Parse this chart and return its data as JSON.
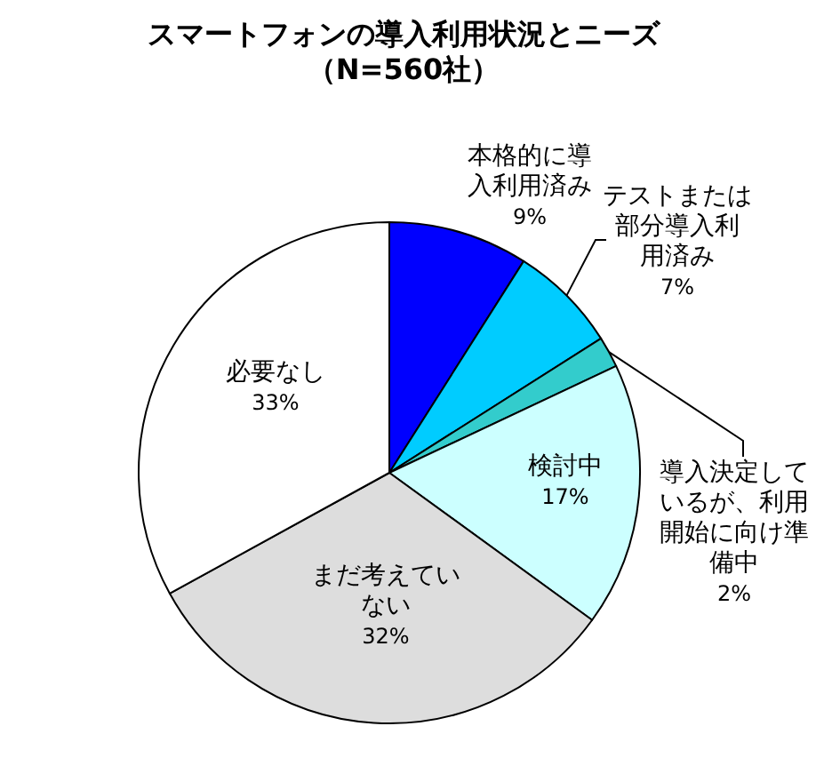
{
  "chart_data": {
    "type": "pie",
    "title": "スマートフォンの導入利用状況とニーズ",
    "subtitle": "（N=560社）",
    "categories": [
      "本格的に導入利用済み",
      "テストまたは部分導入利用済み",
      "導入決定しているが、利用開始に向け準備中",
      "検討中",
      "まだ考えていない",
      "必要なし"
    ],
    "values": [
      9,
      7,
      2,
      17,
      32,
      33
    ],
    "colors": [
      "#0000ff",
      "#00ccff",
      "#33cccc",
      "#ccffff",
      "#dddddd",
      "#ffffff"
    ],
    "value_labels": [
      "9%",
      "7%",
      "2%",
      "17%",
      "32%",
      "33%"
    ]
  }
}
